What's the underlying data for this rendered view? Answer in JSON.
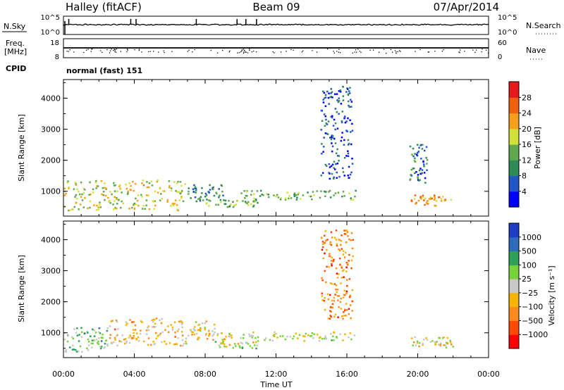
{
  "header": {
    "radar": "Halley (fitACF)",
    "beam": "Beam 09",
    "date": "07/Apr/2014"
  },
  "noise_panel": {
    "left_label": "N.Sky",
    "left_ticks": [
      "10^5",
      "10^0"
    ],
    "right_ticks": [
      "10^5",
      "10^0"
    ],
    "right_label": "N.Search"
  },
  "freq_panel": {
    "left_label_1": "Freq.",
    "left_label_2": "[MHz]",
    "left_ticks": [
      "18",
      "8"
    ],
    "right_ticks": [
      "60",
      "0"
    ],
    "right_label": "Nave"
  },
  "cpid": {
    "label": "CPID",
    "value": "normal (fast) 151"
  },
  "chart_data": [
    {
      "type": "heatmap",
      "quantity": "Power",
      "ylabel": "Slant Range [km]",
      "xlabel": "",
      "ylim": [
        200,
        4600
      ],
      "yticks": [
        "1000",
        "2000",
        "3000",
        "4000"
      ],
      "colorbar": {
        "label": "Power [dB]",
        "range": [
          0,
          32
        ],
        "ticks": [
          "4",
          "8",
          "12",
          "16",
          "20",
          "24",
          "28"
        ],
        "colors": [
          "#0000ff",
          "#2255c8",
          "#2e8b57",
          "#5fa84f",
          "#d4e03a",
          "#f6a019",
          "#f06010",
          "#e41a1c"
        ]
      },
      "structures": [
        {
          "t0": 0.0,
          "t1": 6.9,
          "r0": 400,
          "r1": 1400,
          "value": 18
        },
        {
          "t0": 7.0,
          "t1": 9.0,
          "r0": 700,
          "r1": 1250,
          "value": 10
        },
        {
          "t0": 8.0,
          "t1": 11.0,
          "r0": 520,
          "r1": 760,
          "value": 14
        },
        {
          "t0": 10.0,
          "t1": 16.5,
          "r0": 750,
          "r1": 1050,
          "value": 14
        },
        {
          "t0": 14.5,
          "t1": 16.3,
          "r0": 1400,
          "r1": 4400,
          "value": 6
        },
        {
          "t0": 19.5,
          "t1": 20.5,
          "r0": 1300,
          "r1": 2600,
          "value": 8
        },
        {
          "t0": 19.6,
          "t1": 22.0,
          "r0": 550,
          "r1": 900,
          "value": 22
        }
      ]
    },
    {
      "type": "heatmap",
      "quantity": "Velocity",
      "ylabel": "Slant Range [km]",
      "xlabel": "Time UT",
      "ylim": [
        200,
        4600
      ],
      "yticks": [
        "1000",
        "2000",
        "3000",
        "4000"
      ],
      "xticks": [
        "00:00",
        "04:00",
        "08:00",
        "12:00",
        "16:00",
        "20:00",
        "00:00"
      ],
      "colorbar": {
        "label": "Velocity [m s⁻¹]",
        "range": [
          -1300,
          1300
        ],
        "ticks": [
          "1000",
          "500",
          "100",
          "25",
          "−25",
          "−100",
          "−500",
          "−1000"
        ],
        "colors": [
          "#ff0000",
          "#ff4b00",
          "#ff8c1a",
          "#f5b400",
          "#c8c8c8",
          "#78d23c",
          "#2ea05a",
          "#2e6bb8",
          "#1e3cc8"
        ]
      },
      "structures": [
        {
          "t0": 0.0,
          "t1": 2.5,
          "r0": 400,
          "r1": 1200,
          "value": 300
        },
        {
          "t0": 2.5,
          "t1": 6.9,
          "r0": 600,
          "r1": 1500,
          "value": -300
        },
        {
          "t0": 7.0,
          "t1": 8.5,
          "r0": 800,
          "r1": 1400,
          "value": -200
        },
        {
          "t0": 8.5,
          "t1": 16.5,
          "r0": 750,
          "r1": 1050,
          "value": 0
        },
        {
          "t0": 8.5,
          "t1": 11.0,
          "r0": 520,
          "r1": 760,
          "value": 0
        },
        {
          "t0": 14.5,
          "t1": 16.3,
          "r0": 1400,
          "r1": 4400,
          "value": -600
        },
        {
          "t0": 19.6,
          "t1": 22.0,
          "r0": 550,
          "r1": 900,
          "value": -100
        }
      ]
    }
  ]
}
